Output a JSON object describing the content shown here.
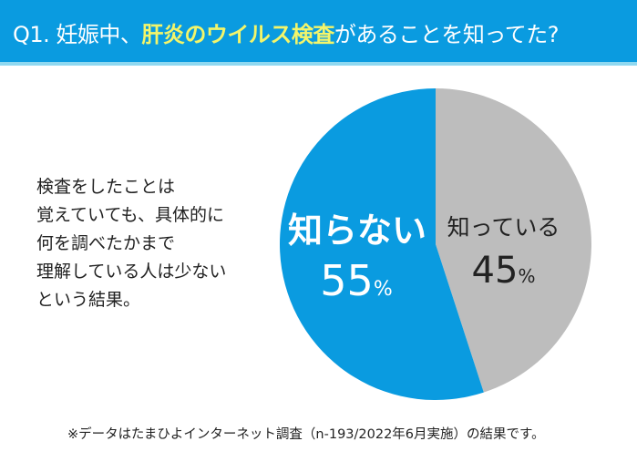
{
  "header": {
    "title_prefix": "Q1. 妊娠中、",
    "title_highlight": "肝炎のウイルス検査",
    "title_suffix": "があることを知ってた?"
  },
  "note": "検査をしたことは\n覚えていても、具体的に\n何を調べたかまで\n理解している人は少ない\nという結果。",
  "footnote": "※データはたまひよインターネット調査（n-193/2022年6月実施）の結果です。",
  "colors": {
    "header": "#0a9be0",
    "highlight": "#f3f56a",
    "blue": "#0a9be0",
    "gray": "#bdbdbd"
  },
  "chart_data": {
    "type": "pie",
    "start": "12 o'clock, clockwise",
    "slices": [
      {
        "label": "知っている",
        "value": 45,
        "value_label": "45",
        "unit": "%",
        "color": "#bdbdbd"
      },
      {
        "label": "知らない",
        "value": 55,
        "value_label": "55",
        "unit": "%",
        "color": "#0a9be0"
      }
    ]
  }
}
